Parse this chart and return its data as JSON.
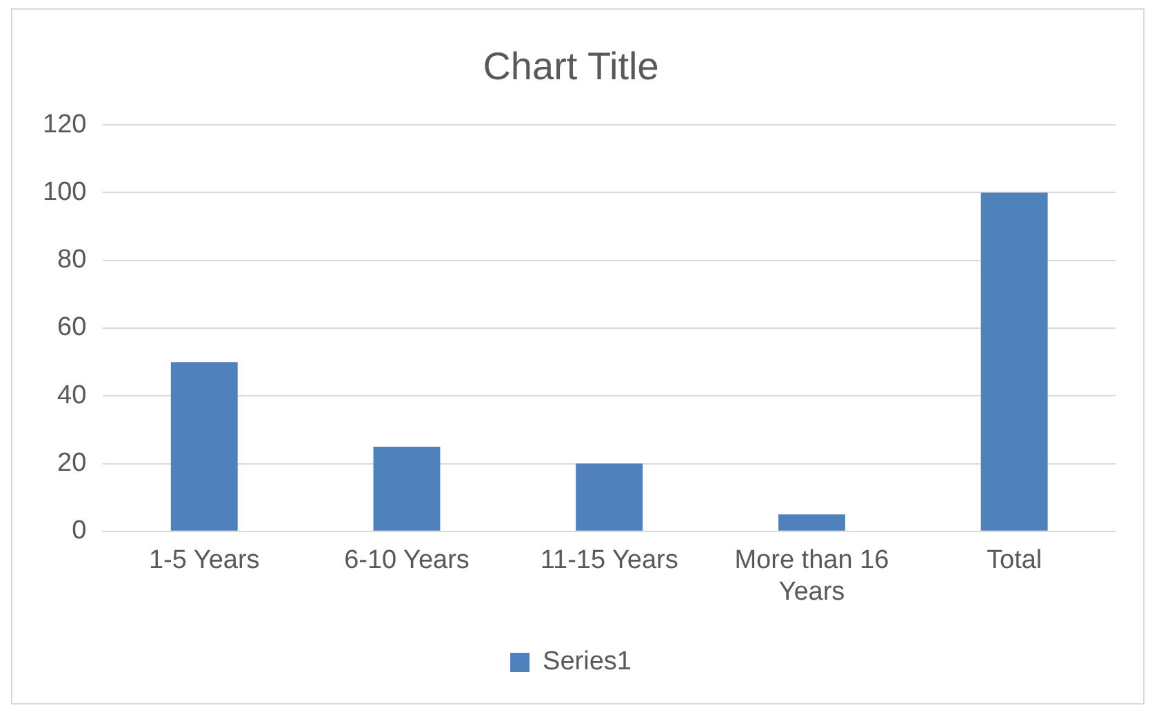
{
  "chart_data": {
    "type": "bar",
    "title": "Chart Title",
    "categories": [
      "1-5 Years",
      "6-10 Years",
      "11-15 Years",
      "More than 16 Years",
      "Total"
    ],
    "series": [
      {
        "name": "Series1",
        "color": "#4f81bd",
        "values": [
          50,
          25,
          20,
          5,
          100
        ]
      }
    ],
    "ylim": [
      0,
      120
    ],
    "yticks": [
      0,
      20,
      40,
      60,
      80,
      100,
      120
    ],
    "grid": "y",
    "legend": "bottom"
  }
}
